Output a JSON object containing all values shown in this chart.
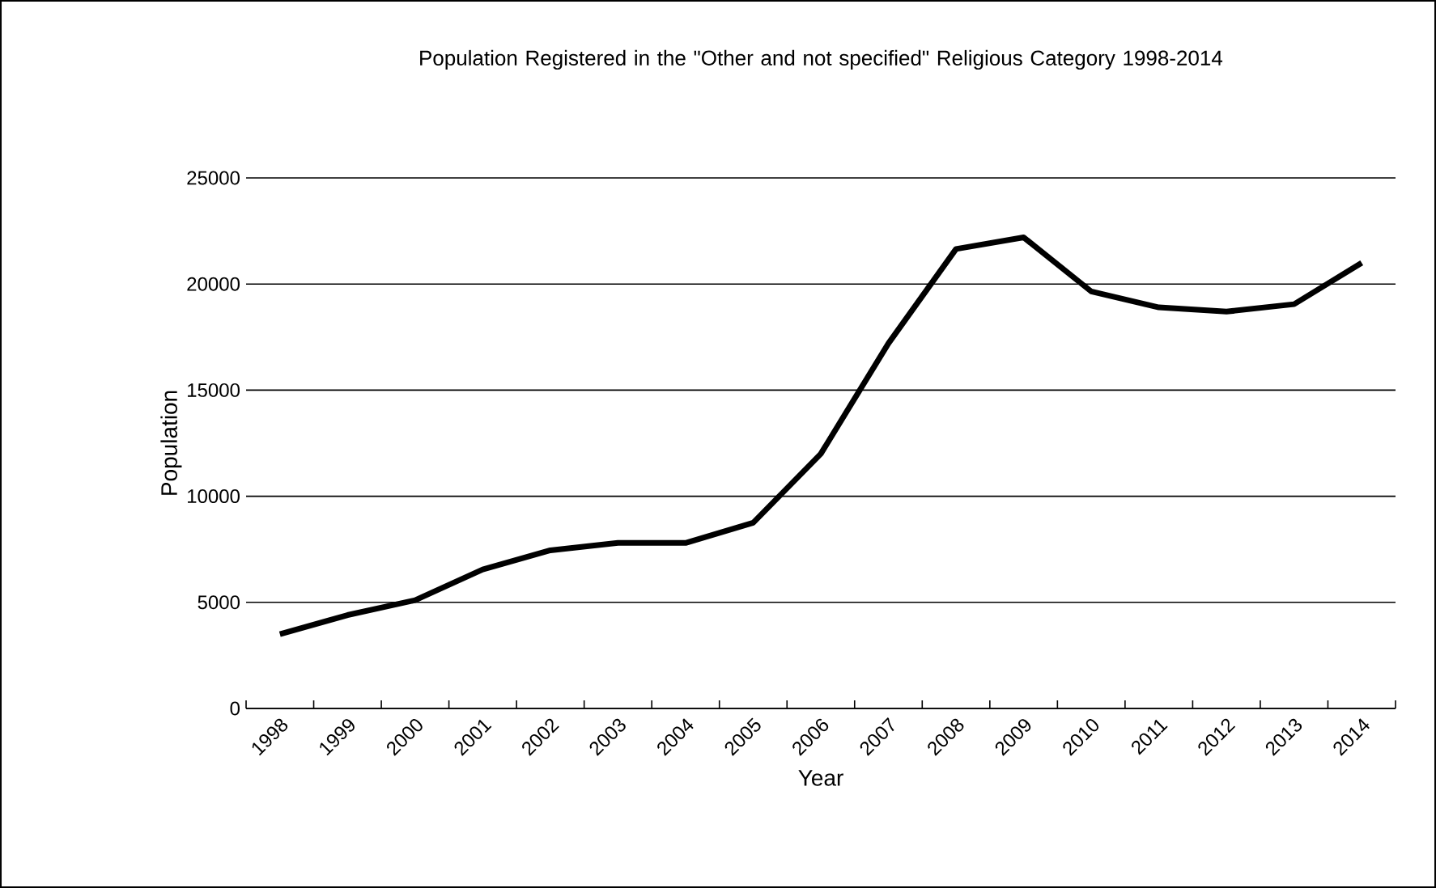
{
  "chart_data": {
    "type": "line",
    "title": "Population Registered in the \"Other and not specified\" Religious Category 1998-2014",
    "xlabel": "Year",
    "ylabel": "Population",
    "categories": [
      "1998",
      "1999",
      "2000",
      "2001",
      "2002",
      "2003",
      "2004",
      "2005",
      "2006",
      "2007",
      "2008",
      "2009",
      "2010",
      "2011",
      "2012",
      "2013",
      "2014"
    ],
    "series": [
      {
        "color": "#000000",
        "values": [
          3500,
          4400,
          5100,
          6550,
          7450,
          7800,
          7800,
          8750,
          12000,
          17200,
          21650,
          22200,
          19650,
          18900,
          18700,
          19050,
          21000
        ]
      }
    ],
    "ylim": [
      0,
      25000
    ],
    "yticks": [
      0,
      5000,
      10000,
      15000,
      20000,
      25000
    ],
    "grid": "y",
    "marker": "none",
    "line_style": "solid"
  }
}
